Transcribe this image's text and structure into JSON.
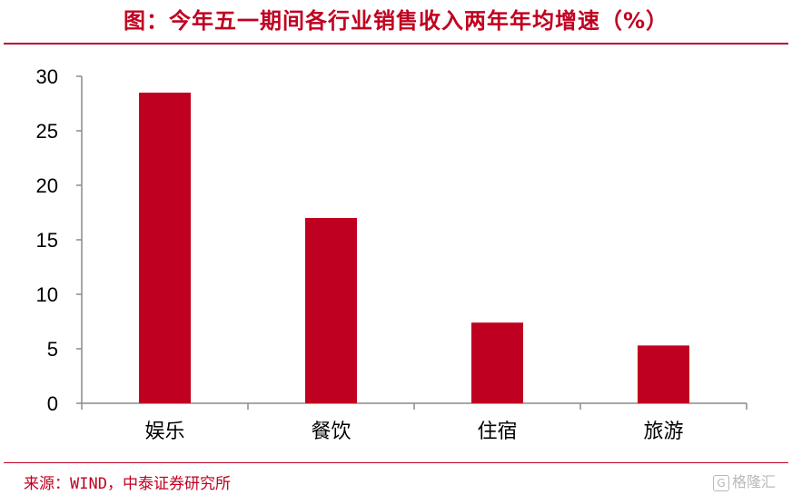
{
  "chart_data": {
    "type": "bar",
    "title": "图：今年五一期间各行业销售收入两年年均增速（%）",
    "categories": [
      "娱乐",
      "餐饮",
      "住宿",
      "旅游"
    ],
    "values": [
      28.5,
      17.0,
      7.4,
      5.3
    ],
    "ylim": [
      0,
      30
    ],
    "yticks": [
      "0",
      "5",
      "10",
      "15",
      "20",
      "25",
      "30"
    ],
    "xlabel": "",
    "ylabel": "",
    "bar_color": "#c00020",
    "grid": false,
    "legend": "none"
  },
  "source": "来源：WIND，中泰证券研究所",
  "watermark": {
    "logo": "G",
    "text": "格隆汇"
  }
}
